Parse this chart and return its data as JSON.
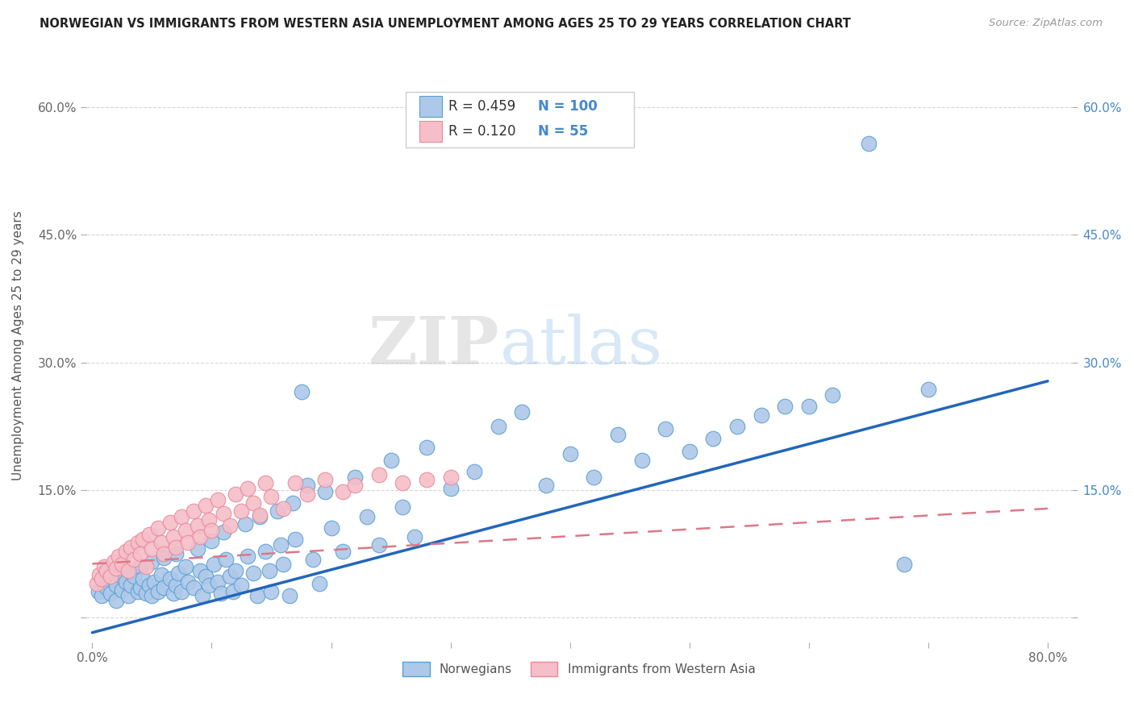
{
  "title": "NORWEGIAN VS IMMIGRANTS FROM WESTERN ASIA UNEMPLOYMENT AMONG AGES 25 TO 29 YEARS CORRELATION CHART",
  "source": "Source: ZipAtlas.com",
  "ylabel": "Unemployment Among Ages 25 to 29 years",
  "xlim": [
    -0.005,
    0.82
  ],
  "ylim": [
    -0.03,
    0.67
  ],
  "xticks": [
    0.0,
    0.1,
    0.2,
    0.3,
    0.4,
    0.5,
    0.6,
    0.7,
    0.8
  ],
  "yticks": [
    0.0,
    0.15,
    0.3,
    0.45,
    0.6
  ],
  "blue_R": 0.459,
  "blue_N": 100,
  "pink_R": 0.12,
  "pink_N": 55,
  "blue_color": "#adc8e8",
  "pink_color": "#f5bec8",
  "blue_edge_color": "#5a9fd4",
  "pink_edge_color": "#e88a9a",
  "blue_line_color": "#2266bb",
  "pink_line_color": "#dd7788",
  "legend_blue_label": "Norwegians",
  "legend_pink_label": "Immigrants from Western Asia",
  "blue_line_x0": 0.0,
  "blue_line_y0": -0.018,
  "blue_line_x1": 0.8,
  "blue_line_y1": 0.278,
  "pink_line_x0": 0.0,
  "pink_line_y0": 0.063,
  "pink_line_x1": 0.8,
  "pink_line_y1": 0.128,
  "blue_scatter_x": [
    0.005,
    0.008,
    0.01,
    0.012,
    0.015,
    0.018,
    0.02,
    0.02,
    0.022,
    0.025,
    0.028,
    0.03,
    0.03,
    0.032,
    0.035,
    0.038,
    0.04,
    0.04,
    0.042,
    0.045,
    0.048,
    0.05,
    0.05,
    0.052,
    0.055,
    0.058,
    0.06,
    0.06,
    0.065,
    0.068,
    0.07,
    0.07,
    0.072,
    0.075,
    0.078,
    0.08,
    0.085,
    0.088,
    0.09,
    0.092,
    0.095,
    0.098,
    0.1,
    0.102,
    0.105,
    0.108,
    0.11,
    0.112,
    0.115,
    0.118,
    0.12,
    0.125,
    0.128,
    0.13,
    0.135,
    0.138,
    0.14,
    0.145,
    0.148,
    0.15,
    0.155,
    0.158,
    0.16,
    0.165,
    0.168,
    0.17,
    0.175,
    0.18,
    0.185,
    0.19,
    0.195,
    0.2,
    0.21,
    0.22,
    0.23,
    0.24,
    0.25,
    0.26,
    0.27,
    0.28,
    0.3,
    0.32,
    0.34,
    0.36,
    0.38,
    0.4,
    0.42,
    0.44,
    0.46,
    0.48,
    0.5,
    0.52,
    0.54,
    0.56,
    0.58,
    0.6,
    0.62,
    0.65,
    0.68,
    0.7
  ],
  "blue_scatter_y": [
    0.03,
    0.025,
    0.04,
    0.035,
    0.028,
    0.045,
    0.038,
    0.02,
    0.05,
    0.032,
    0.042,
    0.025,
    0.055,
    0.038,
    0.048,
    0.03,
    0.035,
    0.06,
    0.045,
    0.028,
    0.038,
    0.025,
    0.065,
    0.042,
    0.03,
    0.05,
    0.035,
    0.07,
    0.045,
    0.028,
    0.038,
    0.075,
    0.052,
    0.03,
    0.06,
    0.042,
    0.035,
    0.08,
    0.055,
    0.025,
    0.048,
    0.038,
    0.09,
    0.062,
    0.042,
    0.028,
    0.1,
    0.068,
    0.048,
    0.03,
    0.055,
    0.038,
    0.11,
    0.072,
    0.052,
    0.025,
    0.118,
    0.078,
    0.055,
    0.03,
    0.125,
    0.085,
    0.062,
    0.025,
    0.135,
    0.092,
    0.265,
    0.155,
    0.068,
    0.04,
    0.148,
    0.105,
    0.078,
    0.165,
    0.118,
    0.085,
    0.185,
    0.13,
    0.095,
    0.2,
    0.152,
    0.172,
    0.225,
    0.242,
    0.155,
    0.192,
    0.165,
    0.215,
    0.185,
    0.222,
    0.195,
    0.21,
    0.225,
    0.238,
    0.248,
    0.248,
    0.262,
    0.558,
    0.062,
    0.268
  ],
  "pink_scatter_x": [
    0.004,
    0.006,
    0.008,
    0.01,
    0.012,
    0.015,
    0.018,
    0.02,
    0.022,
    0.025,
    0.028,
    0.03,
    0.032,
    0.035,
    0.038,
    0.04,
    0.042,
    0.045,
    0.048,
    0.05,
    0.055,
    0.058,
    0.06,
    0.065,
    0.068,
    0.07,
    0.075,
    0.078,
    0.08,
    0.085,
    0.088,
    0.09,
    0.095,
    0.098,
    0.1,
    0.105,
    0.11,
    0.115,
    0.12,
    0.125,
    0.13,
    0.135,
    0.14,
    0.145,
    0.15,
    0.16,
    0.17,
    0.18,
    0.195,
    0.21,
    0.22,
    0.24,
    0.26,
    0.28,
    0.3
  ],
  "pink_scatter_y": [
    0.04,
    0.05,
    0.045,
    0.06,
    0.055,
    0.048,
    0.065,
    0.058,
    0.072,
    0.062,
    0.078,
    0.055,
    0.082,
    0.068,
    0.088,
    0.075,
    0.092,
    0.06,
    0.098,
    0.08,
    0.105,
    0.088,
    0.075,
    0.112,
    0.095,
    0.082,
    0.118,
    0.102,
    0.088,
    0.125,
    0.108,
    0.095,
    0.132,
    0.115,
    0.102,
    0.138,
    0.122,
    0.108,
    0.145,
    0.125,
    0.152,
    0.135,
    0.12,
    0.158,
    0.142,
    0.128,
    0.158,
    0.145,
    0.162,
    0.148,
    0.155,
    0.168,
    0.158,
    0.162,
    0.165
  ],
  "watermark_zip": "ZIP",
  "watermark_atlas": "atlas",
  "background_color": "#ffffff",
  "grid_color": "#cccccc",
  "right_tick_color": "#4488cc"
}
